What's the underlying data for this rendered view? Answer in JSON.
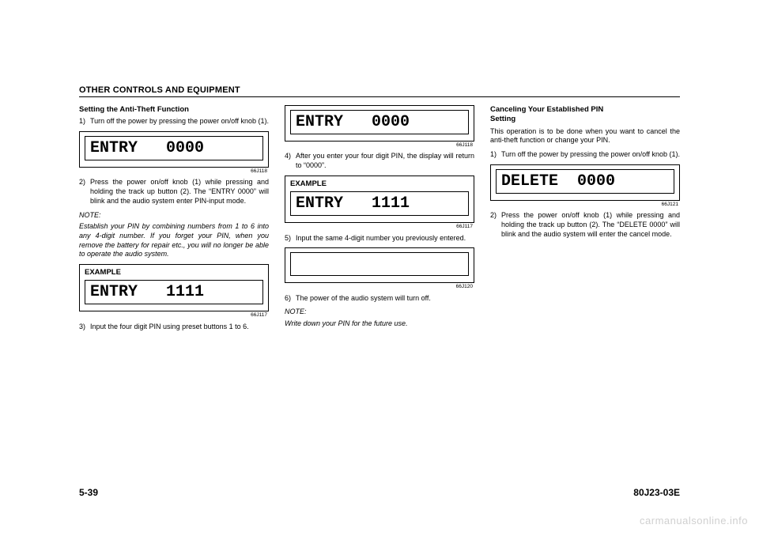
{
  "header": "OTHER CONTROLS AND EQUIPMENT",
  "col1": {
    "h1": "Setting the Anti-Theft Function",
    "s1n": "1)",
    "s1t": "Turn off the power by pressing the power on/off knob (1).",
    "lcd1": "ENTRY   0000",
    "ref1": "66J118",
    "s2n": "2)",
    "s2t": "Press the power on/off knob (1) while pressing and holding the track up button (2). The “ENTRY 0000” will blink and the audio system enter PIN-input mode.",
    "noteLabel": "NOTE:",
    "noteBody": "Establish your PIN by combining numbers from 1 to 6 into any 4-digit number. If you forget your PIN, when you remove the battery for repair etc., you will no longer be able to operate the audio system.",
    "ex2": "EXAMPLE",
    "lcd2": "ENTRY   1111",
    "ref2": "66J117",
    "s3n": "3)",
    "s3t": "Input the four digit PIN using preset buttons 1 to 6."
  },
  "col2": {
    "lcd1": "ENTRY   0000",
    "ref1": "66J118",
    "s4n": "4)",
    "s4t": "After you enter your four digit PIN, the display will return to “0000”.",
    "ex2": "EXAMPLE",
    "lcd2": "ENTRY   1111",
    "ref2": "66J117",
    "s5n": "5)",
    "s5t": "Input the same 4-digit number you previously entered.",
    "ref3": "66J120",
    "s6n": "6)",
    "s6t": "The power of the audio system will turn off.",
    "noteLabel": "NOTE:",
    "noteBody": "Write down your PIN for the future use."
  },
  "col3": {
    "h1a": "Canceling Your Established PIN",
    "h1b": "Setting",
    "intro": "This operation is to be done when you want to cancel the anti-theft function or change your PIN.",
    "s1n": "1)",
    "s1t": "Turn off the power by pressing the power on/off knob (1).",
    "lcd1": "DELETE  0000",
    "ref1": "66J121",
    "s2n": "2)",
    "s2t": "Press the power on/off knob (1) while pressing and holding the track up button (2). The “DELETE 0000” will blink and the audio system will enter the cancel mode."
  },
  "pageNumber": "5-39",
  "docCode": "80J23-03E",
  "watermark": "carmanualsonline.info"
}
